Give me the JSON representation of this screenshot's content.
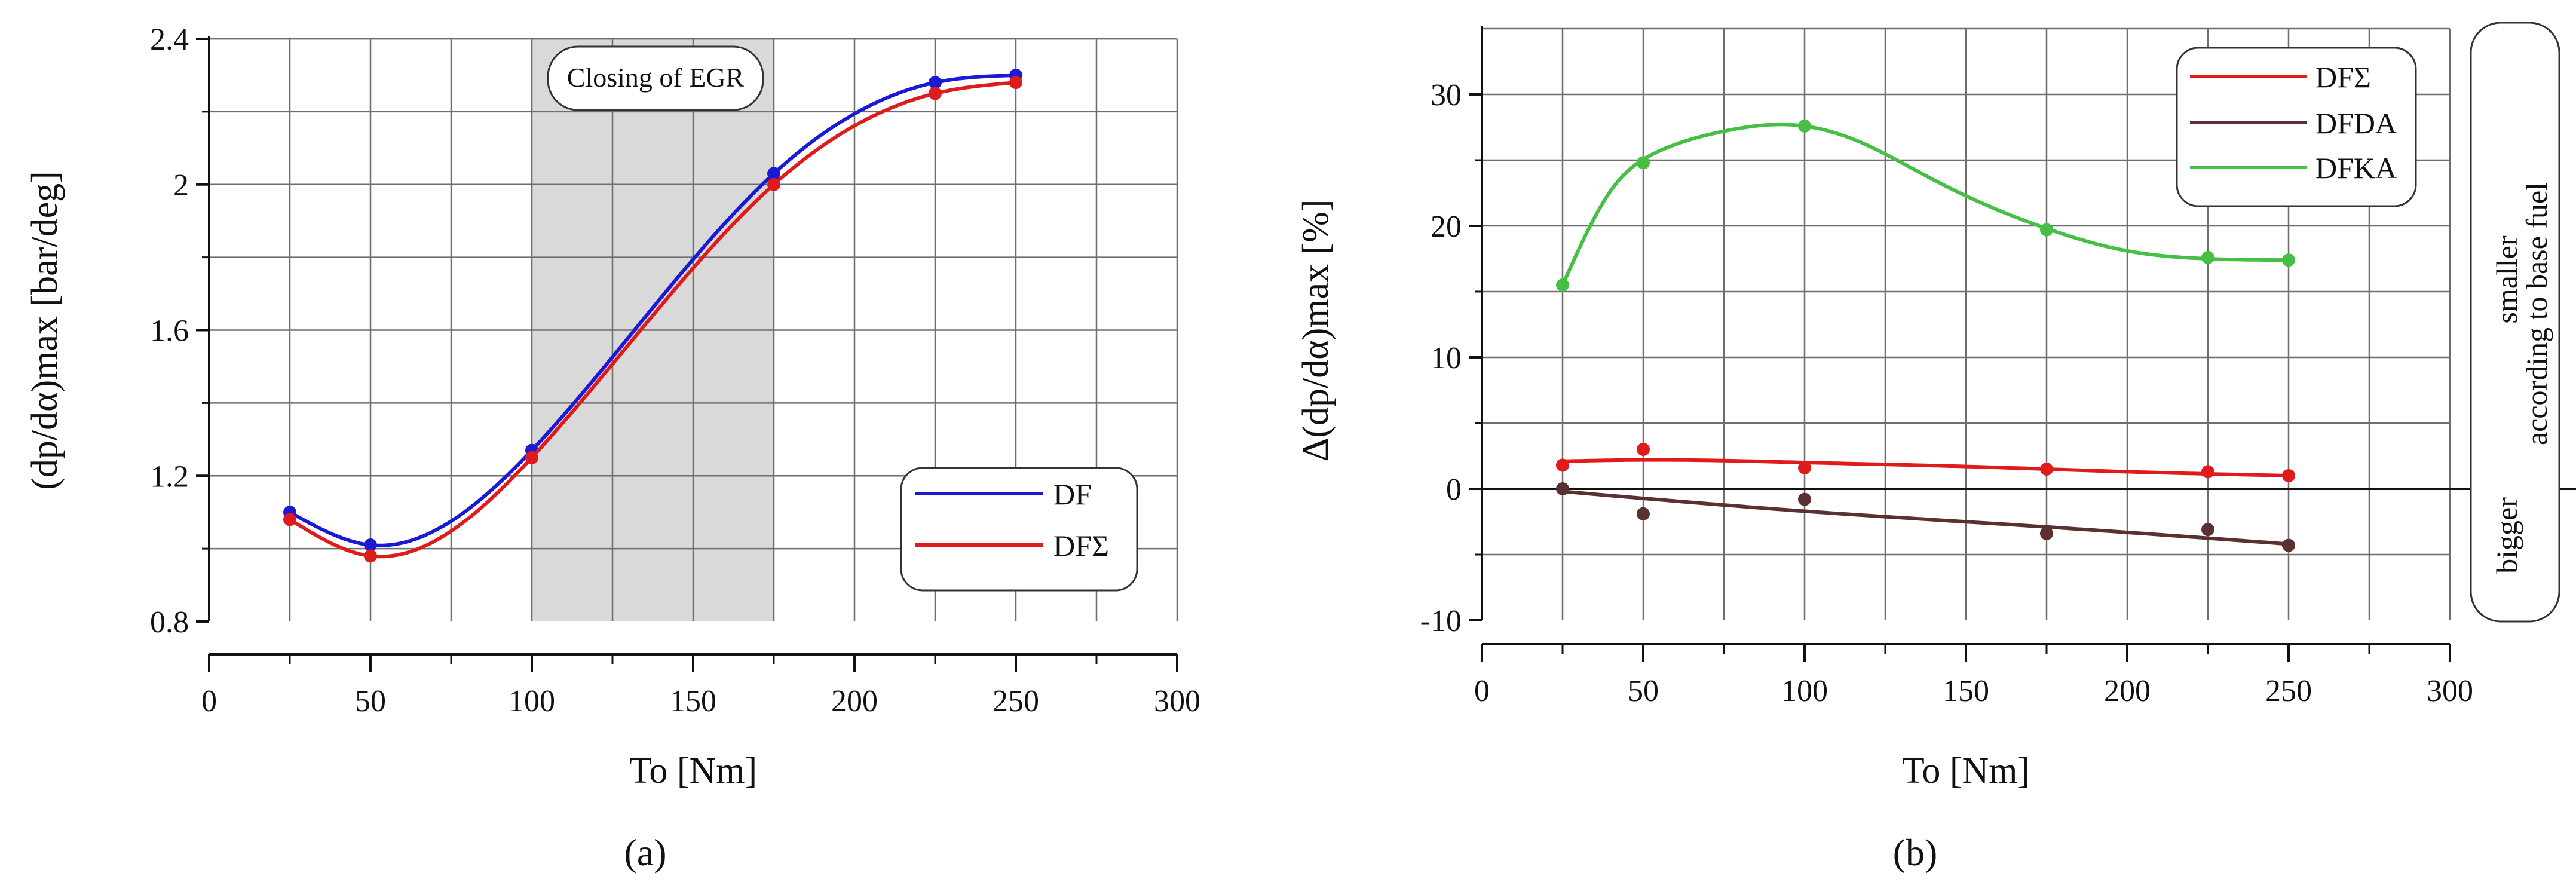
{
  "chart_data": [
    {
      "id": "a",
      "type": "line",
      "caption": "(a)",
      "xlabel": "To [Nm]",
      "ylabel": "(dp/dα)max [bar/deg]",
      "xlim": [
        0,
        300
      ],
      "ylim": [
        0.8,
        2.4
      ],
      "x_ticks": [
        0,
        50,
        100,
        150,
        200,
        250,
        300
      ],
      "y_ticks": [
        0.8,
        1.2,
        1.6,
        2,
        2.4
      ],
      "x_tick_labels": [
        "0",
        "50",
        "100",
        "150",
        "200",
        "250",
        "300"
      ],
      "y_tick_labels": [
        "0.8",
        "1.2",
        "1.6",
        "2",
        "2.4"
      ],
      "grid": true,
      "shaded_region": {
        "x_from": 100,
        "x_to": 175,
        "label": "Closing of EGR"
      },
      "legend_position": "bottom-right",
      "series": [
        {
          "name": "DF",
          "color": "#1a1ad6",
          "x": [
            25,
            50,
            100,
            175,
            225,
            250
          ],
          "values": [
            1.1,
            1.01,
            1.27,
            2.03,
            2.28,
            2.3
          ]
        },
        {
          "name": "DFΣ",
          "color": "#e01b1b",
          "x": [
            25,
            50,
            100,
            175,
            225,
            250
          ],
          "values": [
            1.08,
            0.98,
            1.25,
            2.0,
            2.25,
            2.28
          ]
        }
      ]
    },
    {
      "id": "b",
      "type": "line",
      "caption": "(b)",
      "xlabel": "To [Nm]",
      "ylabel": "Δ(dp/dα)max [%]",
      "xlim": [
        0,
        300
      ],
      "ylim": [
        -10,
        35
      ],
      "x_ticks": [
        0,
        50,
        100,
        150,
        200,
        250,
        300
      ],
      "y_ticks": [
        -10,
        0,
        10,
        20,
        30
      ],
      "x_tick_labels": [
        "0",
        "50",
        "100",
        "150",
        "200",
        "250",
        "300"
      ],
      "y_tick_labels": [
        "-10",
        "0",
        "10",
        "20",
        "30"
      ],
      "grid": true,
      "zero_line": true,
      "legend_position": "top-right",
      "side_annotation": {
        "upper": "smaller",
        "middle": "according to base fuel",
        "lower": "bigger"
      },
      "series": [
        {
          "name": "DFΣ",
          "color": "#e01b1b",
          "x": [
            25,
            50,
            100,
            175,
            225,
            250
          ],
          "values": [
            1.8,
            3.0,
            1.6,
            1.5,
            1.3,
            1.0
          ],
          "fit": [
            [
              25,
              2.1
            ],
            [
              50,
              2.2
            ],
            [
              100,
              2.0
            ],
            [
              150,
              1.7
            ],
            [
              200,
              1.3
            ],
            [
              250,
              1.0
            ]
          ]
        },
        {
          "name": "DFDA",
          "color": "#5b3030",
          "x": [
            25,
            50,
            100,
            175,
            225,
            250
          ],
          "values": [
            0.0,
            -1.9,
            -0.8,
            -3.4,
            -3.1,
            -4.3
          ],
          "fit": [
            [
              25,
              -0.2
            ],
            [
              100,
              -1.7
            ],
            [
              175,
              -2.9
            ],
            [
              250,
              -4.2
            ]
          ]
        },
        {
          "name": "DFKA",
          "color": "#45c045",
          "x": [
            25,
            50,
            100,
            175,
            225,
            250
          ],
          "values": [
            15.5,
            24.8,
            27.6,
            19.7,
            17.6,
            17.4
          ],
          "fit": [
            [
              25,
              15.5
            ],
            [
              40,
              22.7
            ],
            [
              55,
              25.7
            ],
            [
              75,
              27.2
            ],
            [
              95,
              27.7
            ],
            [
              115,
              26.6
            ],
            [
              140,
              23.5
            ],
            [
              175,
              19.8
            ],
            [
              200,
              18.1
            ],
            [
              225,
              17.5
            ],
            [
              250,
              17.4
            ]
          ]
        }
      ]
    }
  ]
}
